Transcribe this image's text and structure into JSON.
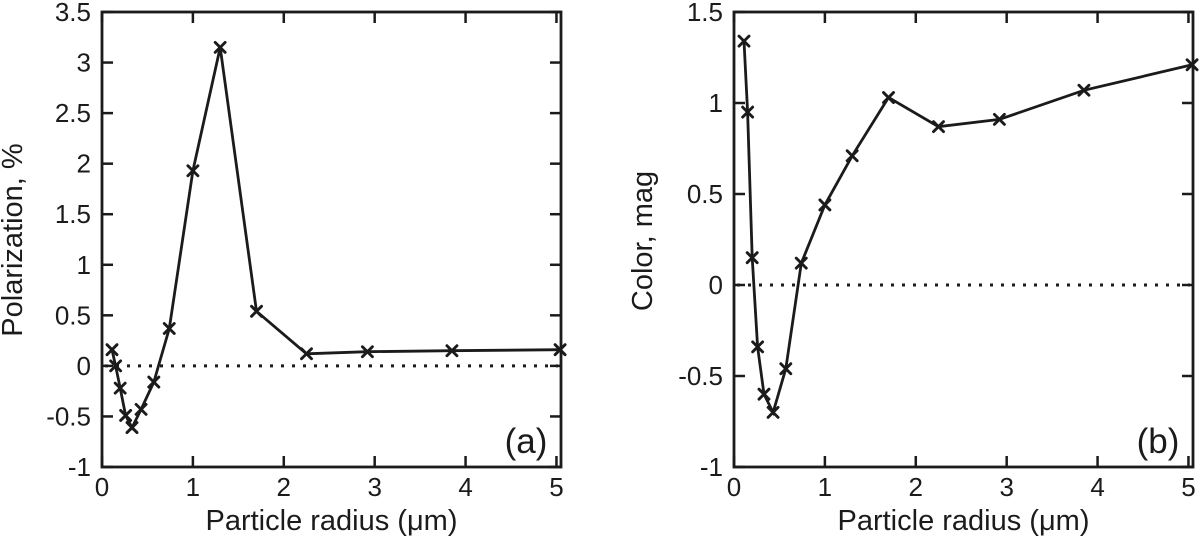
{
  "figure": {
    "background_color": "#ffffff",
    "ink_color": "#1b1b1b"
  },
  "chart_data": [
    {
      "id": "a",
      "type": "line",
      "panel_label": "(a)",
      "title": "",
      "xlabel": "Particle radius (μm)",
      "ylabel": "Polarization, %",
      "xlim": [
        0,
        5.05
      ],
      "ylim": [
        -1,
        3.5
      ],
      "xticks": [
        0,
        1,
        2,
        3,
        4,
        5
      ],
      "yticks": [
        -1,
        -0.5,
        0,
        0.5,
        1,
        1.5,
        2,
        2.5,
        3,
        3.5
      ],
      "grid": false,
      "legend": false,
      "zero_line_dotted": true,
      "marker": "x",
      "x": [
        0.11,
        0.15,
        0.2,
        0.26,
        0.33,
        0.43,
        0.57,
        0.74,
        1.0,
        1.3,
        1.7,
        2.25,
        2.92,
        3.85,
        5.04
      ],
      "y": [
        0.16,
        0.0,
        -0.22,
        -0.49,
        -0.61,
        -0.43,
        -0.16,
        0.37,
        1.93,
        3.15,
        0.54,
        0.12,
        0.14,
        0.15,
        0.16
      ]
    },
    {
      "id": "b",
      "type": "line",
      "panel_label": "(b)",
      "title": "",
      "xlabel": "Particle radius (μm)",
      "ylabel": "Color, mag",
      "xlim": [
        0,
        5.05
      ],
      "ylim": [
        -1,
        1.5
      ],
      "xticks": [
        0,
        1,
        2,
        3,
        4,
        5
      ],
      "yticks": [
        -1,
        -0.5,
        0,
        0.5,
        1,
        1.5
      ],
      "grid": false,
      "legend": false,
      "zero_line_dotted": true,
      "marker": "x",
      "x": [
        0.11,
        0.15,
        0.2,
        0.26,
        0.33,
        0.43,
        0.57,
        0.74,
        1.0,
        1.3,
        1.7,
        2.25,
        2.92,
        3.85,
        5.04
      ],
      "y": [
        1.34,
        0.95,
        0.15,
        -0.34,
        -0.6,
        -0.7,
        -0.46,
        0.12,
        0.44,
        0.71,
        1.03,
        0.87,
        0.91,
        1.07,
        1.21
      ]
    }
  ]
}
